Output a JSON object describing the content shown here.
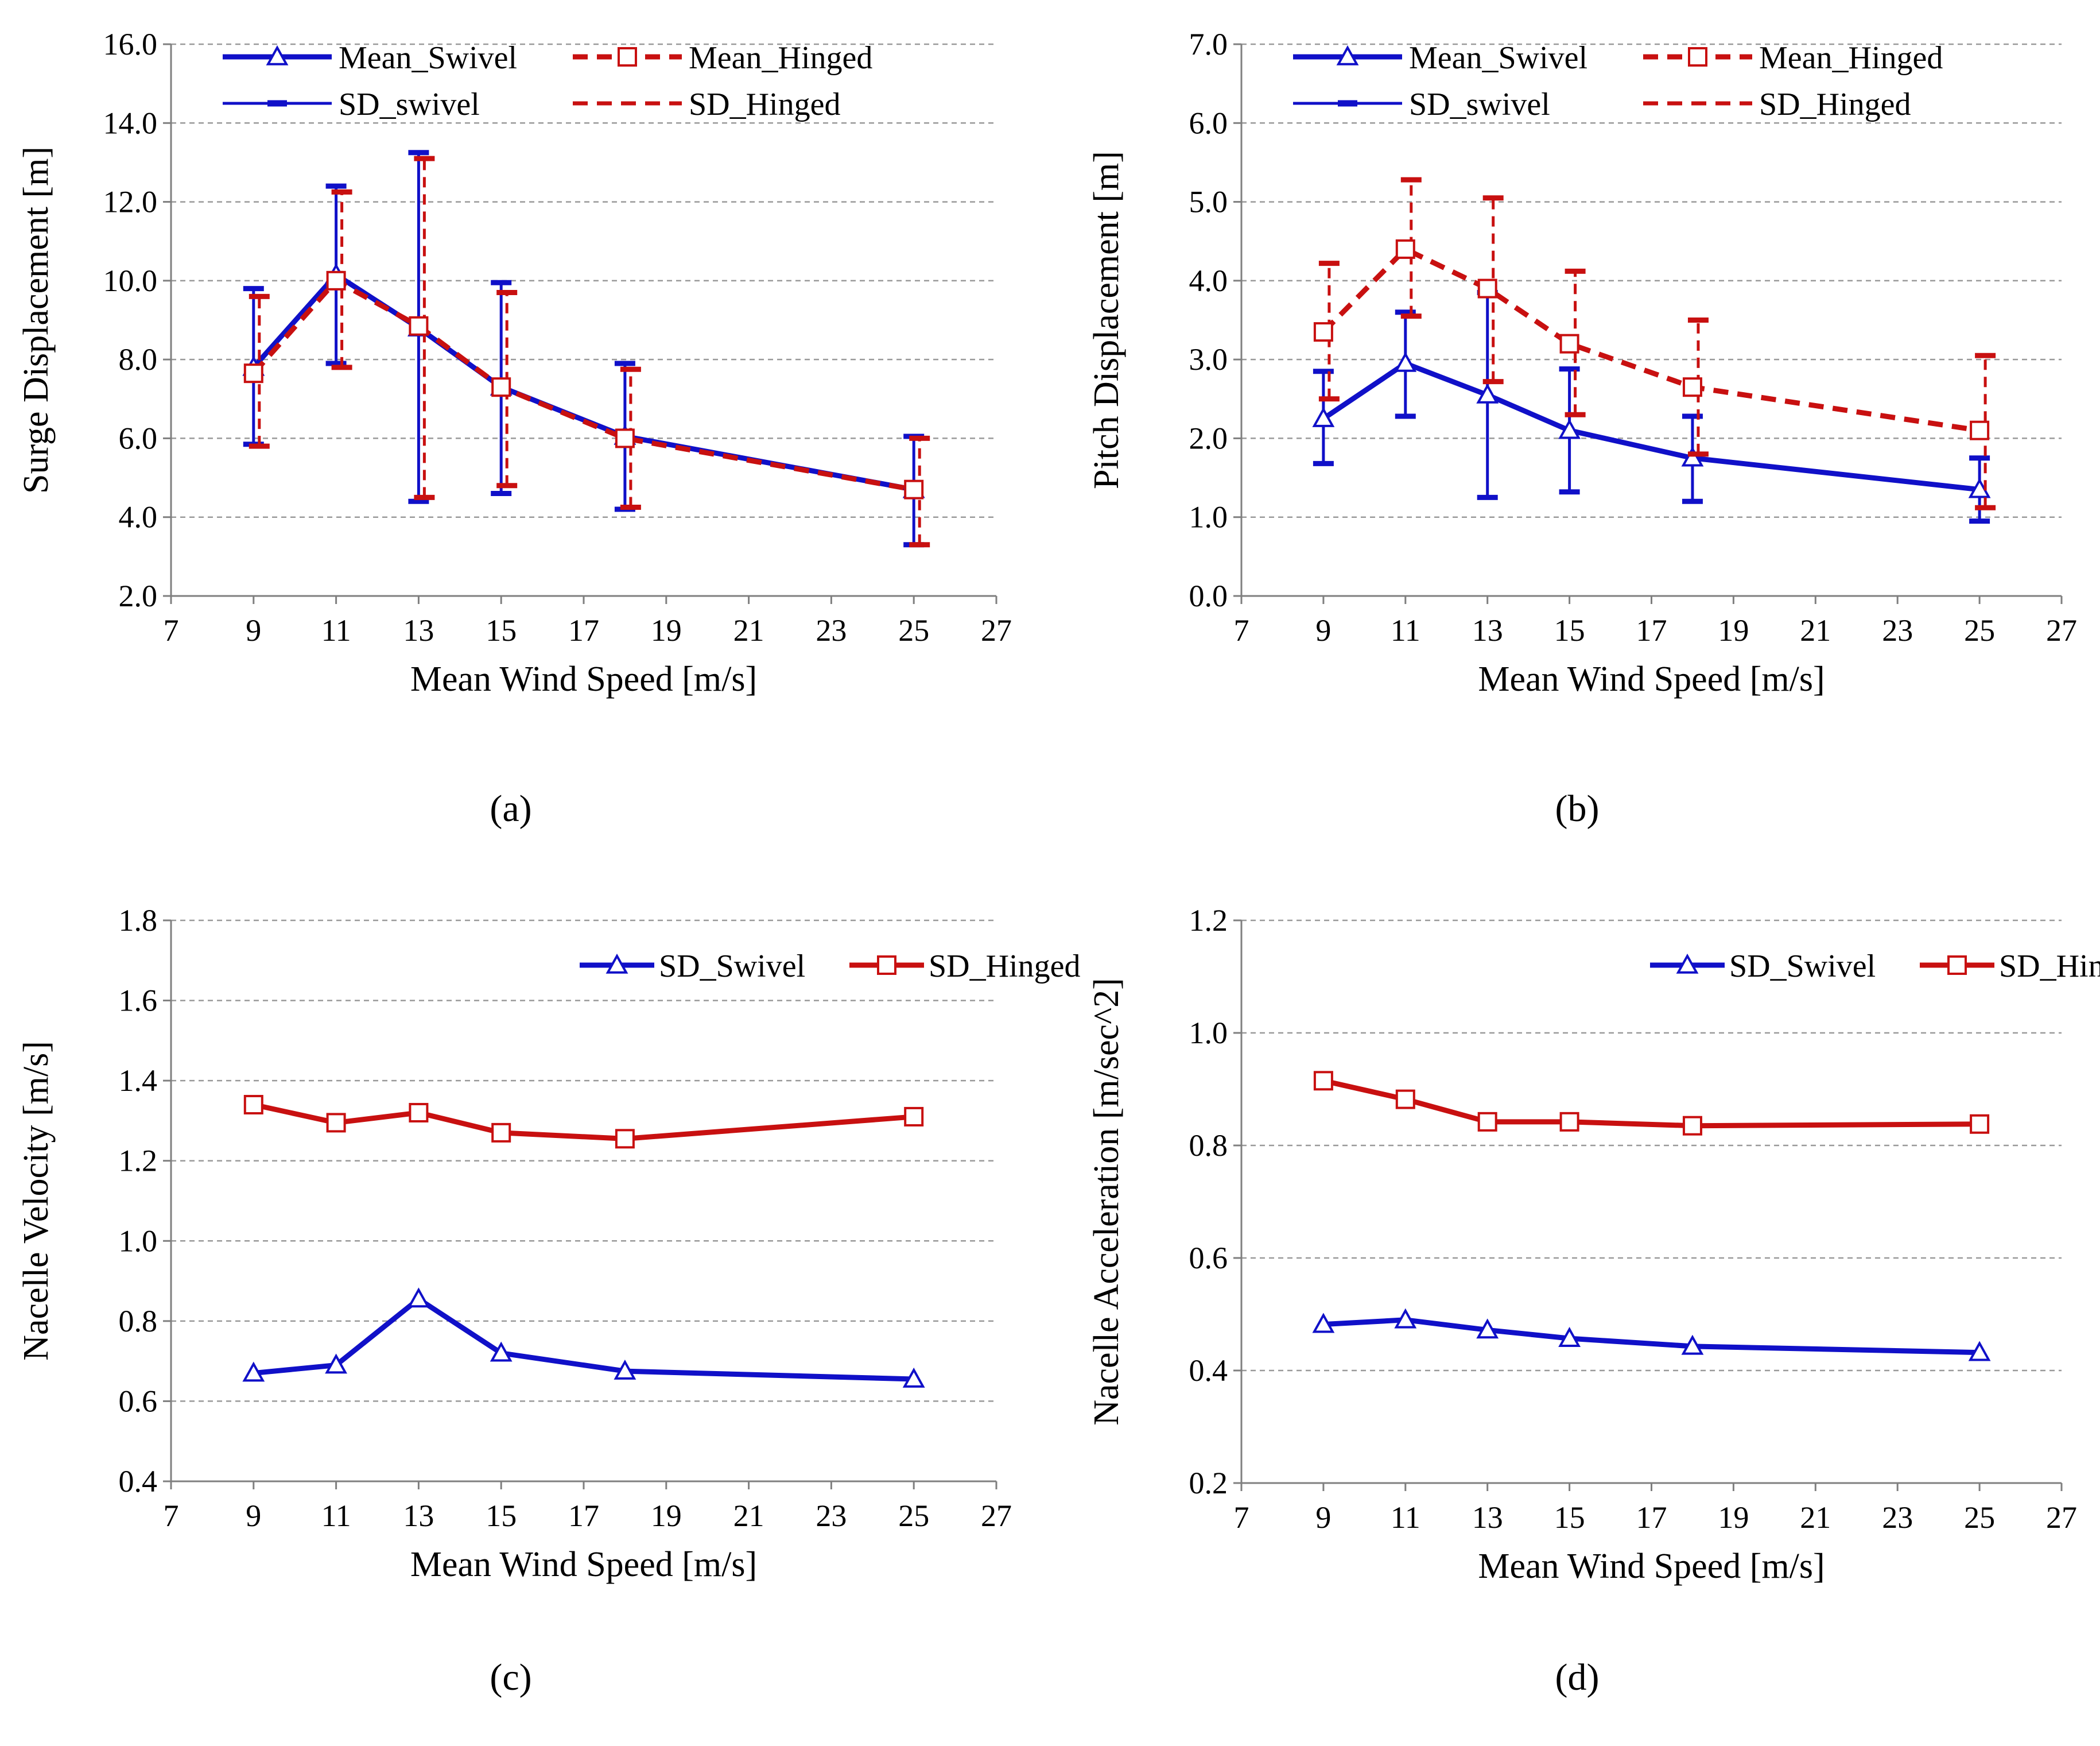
{
  "colors": {
    "swivel": "#1010c8",
    "hinged": "#c81010",
    "grid": "#999999",
    "axis": "#7f7f7f"
  },
  "chart_data": [
    {
      "id": "a",
      "type": "line",
      "caption": "(a)",
      "xlabel": "Mean Wind Speed [m/s]",
      "ylabel": "Surge Displacement [m]",
      "xlim": [
        7,
        27
      ],
      "ylim": [
        2,
        16
      ],
      "xticks": [
        "7",
        "9",
        "11",
        "13",
        "15",
        "17",
        "19",
        "21",
        "23",
        "25",
        "27"
      ],
      "yticks": [
        "2.0",
        "4.0",
        "6.0",
        "8.0",
        "10.0",
        "12.0",
        "14.0",
        "16.0"
      ],
      "grid": true,
      "legend_position": "top",
      "legend": [
        "Mean_Swivel",
        "Mean_Hinged",
        "SD_swivel",
        "SD_Hinged"
      ],
      "x": [
        9,
        11,
        13,
        15,
        18,
        25
      ],
      "series": [
        {
          "name": "Mean_Swivel",
          "color": "swivel",
          "marker": "triangle",
          "style": "solid",
          "values": [
            7.8,
            10.15,
            8.8,
            7.3,
            6.05,
            4.7
          ],
          "err_low": [
            5.85,
            7.9,
            4.4,
            4.6,
            4.2,
            3.3
          ],
          "err_high": [
            9.8,
            12.4,
            13.25,
            9.95,
            7.9,
            6.05
          ]
        },
        {
          "name": "Mean_Hinged",
          "color": "hinged",
          "marker": "square",
          "style": "dashed",
          "values": [
            7.65,
            10.0,
            8.85,
            7.3,
            6.0,
            4.7
          ],
          "err_low": [
            5.8,
            7.8,
            4.5,
            4.8,
            4.25,
            3.3
          ],
          "err_high": [
            9.6,
            12.25,
            13.1,
            9.7,
            7.75,
            6.0
          ]
        }
      ]
    },
    {
      "id": "b",
      "type": "line",
      "caption": "(b)",
      "xlabel": "Mean Wind Speed [m/s]",
      "ylabel": "Pitch Displacement [m]",
      "xlim": [
        7,
        27
      ],
      "ylim": [
        0,
        7
      ],
      "xticks": [
        "7",
        "9",
        "11",
        "13",
        "15",
        "17",
        "19",
        "21",
        "23",
        "25",
        "27"
      ],
      "yticks": [
        "0.0",
        "1.0",
        "2.0",
        "3.0",
        "4.0",
        "5.0",
        "6.0",
        "7.0"
      ],
      "grid": true,
      "legend_position": "top",
      "legend": [
        "Mean_Swivel",
        "Mean_Hinged",
        "SD_swivel",
        "SD_Hinged"
      ],
      "x": [
        9,
        11,
        13,
        15,
        18,
        25
      ],
      "series": [
        {
          "name": "Mean_Swivel",
          "color": "swivel",
          "marker": "triangle",
          "style": "solid",
          "values": [
            2.25,
            2.95,
            2.55,
            2.1,
            1.75,
            1.35
          ],
          "err_low": [
            1.68,
            2.28,
            1.25,
            1.32,
            1.2,
            0.95
          ],
          "err_high": [
            2.85,
            3.6,
            3.85,
            2.88,
            2.28,
            1.75
          ]
        },
        {
          "name": "Mean_Hinged",
          "color": "hinged",
          "marker": "square",
          "style": "dashed",
          "values": [
            3.35,
            4.4,
            3.9,
            3.2,
            2.65,
            2.1
          ],
          "err_low": [
            2.5,
            3.55,
            2.72,
            2.3,
            1.8,
            1.12
          ],
          "err_high": [
            4.22,
            5.28,
            5.05,
            4.12,
            3.5,
            3.05
          ]
        }
      ]
    },
    {
      "id": "c",
      "type": "line",
      "caption": "(c)",
      "xlabel": "Mean Wind Speed [m/s]",
      "ylabel": "Nacelle Velocity [m/s]",
      "xlim": [
        7,
        27
      ],
      "ylim": [
        0.4,
        1.8
      ],
      "xticks": [
        "7",
        "9",
        "11",
        "13",
        "15",
        "17",
        "19",
        "21",
        "23",
        "25",
        "27"
      ],
      "yticks": [
        "0.4",
        "0.6",
        "0.8",
        "1.0",
        "1.2",
        "1.4",
        "1.6",
        "1.8"
      ],
      "grid": true,
      "legend_position": "top-right",
      "legend": [
        "SD_Swivel",
        "SD_Hinged"
      ],
      "x": [
        9,
        11,
        13,
        15,
        18,
        25
      ],
      "series": [
        {
          "name": "SD_Swivel",
          "color": "swivel",
          "marker": "triangle",
          "style": "solid",
          "values": [
            0.67,
            0.69,
            0.855,
            0.72,
            0.675,
            0.655
          ]
        },
        {
          "name": "SD_Hinged",
          "color": "hinged",
          "marker": "square",
          "style": "solid",
          "values": [
            1.34,
            1.295,
            1.32,
            1.27,
            1.255,
            1.31
          ]
        }
      ]
    },
    {
      "id": "d",
      "type": "line",
      "caption": "(d)",
      "xlabel": "Mean Wind Speed [m/s]",
      "ylabel": "Nacelle Acceleration [m/sec^2]",
      "xlim": [
        7,
        27
      ],
      "ylim": [
        0.2,
        1.2
      ],
      "xticks": [
        "7",
        "9",
        "11",
        "13",
        "15",
        "17",
        "19",
        "21",
        "23",
        "25",
        "27"
      ],
      "yticks": [
        "0.2",
        "0.4",
        "0.6",
        "0.8",
        "1.0",
        "1.2"
      ],
      "grid": true,
      "legend_position": "top-right",
      "legend": [
        "SD_Swivel",
        "SD_Hinged"
      ],
      "x": [
        9,
        11,
        13,
        15,
        18,
        25
      ],
      "series": [
        {
          "name": "SD_Swivel",
          "color": "swivel",
          "marker": "triangle",
          "style": "solid",
          "values": [
            0.482,
            0.49,
            0.472,
            0.457,
            0.443,
            0.432
          ]
        },
        {
          "name": "SD_Hinged",
          "color": "hinged",
          "marker": "square",
          "style": "solid",
          "values": [
            0.915,
            0.882,
            0.842,
            0.842,
            0.835,
            0.838
          ]
        }
      ]
    }
  ]
}
